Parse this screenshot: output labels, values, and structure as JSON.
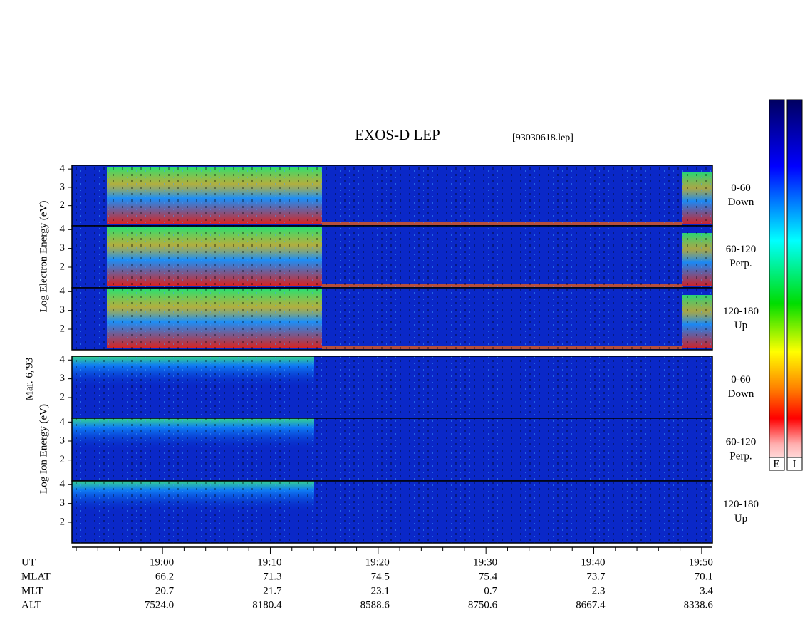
{
  "chart_data": {
    "type": "spectrogram",
    "title": "EXOS-D LEP",
    "subtitle": "[93030618.lep]",
    "date_label": "Mar. 6,'93",
    "electron_axis_label": "Log Electron Energy (eV)",
    "ion_axis_label": "Log Ion Energy (eV)",
    "ylim": [
      0.9,
      4.2
    ],
    "yticks": [
      2,
      3,
      4
    ],
    "panels": [
      {
        "species": "electron",
        "pitch": "0-60",
        "direction": "Down"
      },
      {
        "species": "electron",
        "pitch": "60-120",
        "direction": "Perp."
      },
      {
        "species": "electron",
        "pitch": "120-180",
        "direction": "Up"
      },
      {
        "species": "ion",
        "pitch": "0-60",
        "direction": "Down"
      },
      {
        "species": "ion",
        "pitch": "60-120",
        "direction": "Perp."
      },
      {
        "species": "ion",
        "pitch": "120-180",
        "direction": "Up"
      }
    ],
    "xlim": [
      1131.6,
      1191
    ],
    "xticks": [
      {
        "value": 1140,
        "label": "19:00"
      },
      {
        "value": 1150,
        "label": "19:10"
      },
      {
        "value": 1160,
        "label": "19:20"
      },
      {
        "value": 1170,
        "label": "19:30"
      },
      {
        "value": 1180,
        "label": "19:40"
      },
      {
        "value": 1190,
        "label": "19:50"
      }
    ],
    "minor_xticks": [
      1132,
      1134,
      1136,
      1138,
      1142,
      1144,
      1146,
      1148,
      1152,
      1154,
      1156,
      1158,
      1162,
      1164,
      1166,
      1168,
      1172,
      1174,
      1176,
      1178,
      1182,
      1184,
      1186,
      1188
    ],
    "ephemeris": {
      "names": [
        "UT",
        "MLAT",
        "MLT",
        "ALT"
      ],
      "rows": [
        [
          "66.2",
          "71.3",
          "74.5",
          "75.4",
          "73.7",
          "70.1"
        ],
        [
          "20.7",
          "21.7",
          "23.1",
          "0.7",
          "2.3",
          "3.4"
        ],
        [
          "7524.0",
          "8180.4",
          "8588.6",
          "8750.6",
          "8667.4",
          "8338.6"
        ]
      ]
    },
    "colorbar_labels": [
      "E",
      "I"
    ]
  }
}
